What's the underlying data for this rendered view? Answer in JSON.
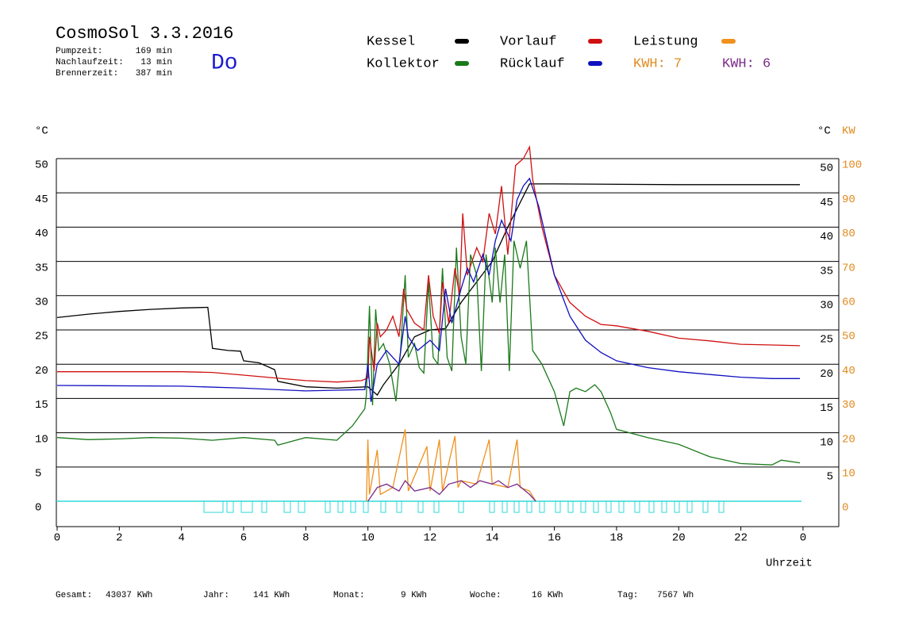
{
  "chart_data": {
    "type": "line",
    "title": "CosmoSol 3.3.2016",
    "day": "Do",
    "stats": [
      {
        "label": "Pumpzeit:",
        "value": "169 min"
      },
      {
        "label": "Nachlaufzeit:",
        "value": "13 min"
      },
      {
        "label": "Brennerzeit:",
        "value": "387 min"
      }
    ],
    "footer": [
      {
        "label": "Gesamt:",
        "value": "43037 KWh"
      },
      {
        "label": "Jahr:",
        "value": "141 KWh"
      },
      {
        "label": "Monat:",
        "value": "9 KWh"
      },
      {
        "label": "Woche:",
        "value": "16 KWh"
      },
      {
        "label": "Tag:",
        "value": "7567 Wh"
      }
    ],
    "kwh_labels": [
      {
        "text": "KWH: 7",
        "color": "#e08a1e"
      },
      {
        "text": "KWH: 6",
        "color": "#7a2a8a"
      }
    ],
    "y_label": "°C",
    "y_right_label": "°C",
    "y2_label": "KW",
    "x_label": "Uhrzeit",
    "xlim": [
      0,
      25.1
    ],
    "xticks": [
      0,
      2,
      4,
      6,
      8,
      10,
      12,
      14,
      16,
      18,
      20,
      22,
      {
        "value": 24,
        "label": "0"
      }
    ],
    "ylim": [
      -3.7,
      54
    ],
    "yticks": [
      0,
      5,
      10,
      15,
      20,
      25,
      30,
      35,
      40,
      45,
      50
    ],
    "yticks_right": [
      5,
      10,
      15,
      20,
      25,
      30,
      35,
      40,
      45,
      50
    ],
    "y2lim": [
      -7.4,
      108
    ],
    "y2ticks": [
      0,
      10,
      20,
      30,
      40,
      50,
      60,
      70,
      80,
      90,
      100
    ],
    "grid": true,
    "series": [
      {
        "name": "Kessel",
        "color": "#000000",
        "x": [
          0,
          1,
          2,
          3,
          4,
          4.85,
          5.0,
          5.5,
          5.9,
          6.0,
          6.5,
          7.0,
          7.1,
          8.0,
          9.0,
          10.0,
          10.3,
          10.5,
          11.0,
          11.5,
          12.0,
          12.5,
          13.0,
          13.5,
          14.0,
          14.5,
          15.2,
          16.0,
          20.0,
          23.9
        ],
        "values": [
          26.8,
          27.3,
          27.7,
          28,
          28.2,
          28.3,
          22.3,
          22,
          21.9,
          20.5,
          20.2,
          19.2,
          17.5,
          16.7,
          16.5,
          16.7,
          15.5,
          17,
          20,
          24,
          25,
          25.2,
          29,
          32,
          35,
          40,
          46.3,
          46.3,
          46.2,
          46.2
        ]
      },
      {
        "name": "Kollektor",
        "color": "#1a7a1a",
        "x": [
          0,
          1,
          2,
          3,
          4,
          5,
          6,
          7,
          7.1,
          8,
          9,
          9.5,
          9.9,
          9.95,
          10.05,
          10.15,
          10.25,
          10.35,
          10.5,
          10.7,
          10.9,
          11.05,
          11.2,
          11.3,
          11.5,
          11.65,
          11.8,
          11.95,
          12.1,
          12.25,
          12.4,
          12.55,
          12.7,
          12.85,
          13.0,
          13.15,
          13.3,
          13.5,
          13.65,
          13.8,
          14.0,
          14.1,
          14.25,
          14.4,
          14.55,
          14.7,
          14.9,
          15.1,
          15.3,
          15.6,
          16.0,
          16.3,
          16.5,
          16.7,
          17.0,
          17.3,
          17.5,
          17.8,
          18.0,
          19.0,
          20.0,
          21.0,
          22.0,
          23.0,
          23.3,
          23.9
        ],
        "values": [
          9.3,
          9.0,
          9.1,
          9.3,
          9.2,
          8.9,
          9.3,
          8.9,
          8.2,
          9.3,
          8.9,
          11,
          13.5,
          15.5,
          28.5,
          14,
          28,
          22,
          23,
          20,
          14.6,
          22,
          33,
          21,
          23,
          19.5,
          18.7,
          32,
          21,
          20,
          34,
          21,
          19,
          37,
          24,
          20,
          36,
          33,
          19,
          36,
          29,
          37,
          29,
          36,
          19,
          38,
          34,
          38,
          22,
          20,
          16,
          11,
          16,
          16.5,
          16,
          17,
          16,
          13,
          10.5,
          9.3,
          8.3,
          6.5,
          5.5,
          5.3,
          6.0,
          5.6
        ]
      },
      {
        "name": "Vorlauf",
        "color": "#d01010",
        "x": [
          0,
          4,
          5,
          6,
          7,
          8,
          9,
          9.8,
          10.0,
          10.05,
          10.2,
          10.3,
          10.4,
          10.6,
          10.8,
          11.0,
          11.15,
          11.25,
          11.5,
          11.8,
          11.95,
          12.1,
          12.3,
          12.4,
          12.6,
          12.8,
          12.95,
          13.05,
          13.2,
          13.5,
          13.7,
          13.9,
          14.1,
          14.3,
          14.5,
          14.75,
          15.0,
          15.2,
          15.3,
          15.6,
          16.0,
          16.5,
          17.0,
          17.5,
          18.0,
          19.0,
          20.0,
          21.0,
          22.0,
          23.0,
          23.9
        ],
        "values": [
          18.9,
          18.9,
          18.8,
          18.4,
          18,
          17.6,
          17.4,
          17.6,
          18,
          24,
          19,
          26,
          24,
          25,
          27,
          24,
          31,
          28,
          26,
          25,
          33,
          27,
          24.5,
          32,
          26,
          34,
          30,
          42,
          33,
          37,
          35,
          42,
          39,
          46,
          36,
          49,
          50,
          51.7,
          47,
          40,
          33,
          29,
          27,
          25.8,
          25.6,
          24.8,
          23.8,
          23.4,
          22.9,
          22.8,
          22.7
        ]
      },
      {
        "name": "Rücklauf",
        "color": "#1010c0",
        "x": [
          0,
          4,
          6,
          8,
          9,
          9.9,
          10.0,
          10.1,
          10.3,
          10.6,
          11.0,
          11.2,
          11.3,
          11.6,
          12.0,
          12.3,
          12.5,
          12.7,
          13.0,
          13.2,
          13.4,
          13.7,
          13.9,
          14.1,
          14.3,
          14.6,
          14.8,
          15.0,
          15.2,
          15.5,
          16.0,
          16.5,
          17.0,
          17.5,
          18.0,
          19.0,
          20.0,
          21.0,
          22.0,
          23.0,
          23.9
        ],
        "values": [
          16.9,
          16.8,
          16.5,
          16.1,
          16.2,
          16.3,
          20,
          14.5,
          20,
          22,
          20,
          27,
          24,
          22,
          23.5,
          22,
          31,
          26,
          31,
          34,
          32,
          36,
          33,
          38,
          41,
          38,
          44,
          46,
          47.1,
          43,
          33,
          27,
          23.5,
          21.7,
          20.5,
          19.5,
          18.9,
          18.5,
          18.1,
          17.9,
          17.9
        ]
      },
      {
        "name": "Leistung",
        "color": "#f0901e",
        "axis": "y2",
        "x": [
          9.95,
          10.0,
          10.05,
          10.3,
          10.4,
          10.8,
          11.2,
          11.3,
          11.9,
          12.0,
          12.3,
          12.4,
          12.8,
          12.9,
          13.0,
          13.5,
          13.9,
          14.0,
          14.5,
          14.8,
          14.9,
          15.2,
          15.4
        ],
        "values": [
          0,
          18,
          2,
          15,
          2,
          4,
          21,
          3,
          16,
          3,
          18,
          3,
          19,
          4,
          6,
          5,
          18,
          5,
          4,
          18,
          4,
          3,
          0
        ]
      },
      {
        "color": "#7a2a8a",
        "axis": "y2",
        "x": [
          10.0,
          10.3,
          10.6,
          11.0,
          11.2,
          11.5,
          12.0,
          12.3,
          12.6,
          13.0,
          13.3,
          13.6,
          14.0,
          14.2,
          14.5,
          14.8,
          15.2,
          15.4
        ],
        "values": [
          0,
          4,
          5,
          3,
          6,
          3,
          4,
          2,
          5,
          6,
          4,
          6,
          5,
          6,
          4,
          5,
          2,
          0
        ]
      }
    ]
  }
}
